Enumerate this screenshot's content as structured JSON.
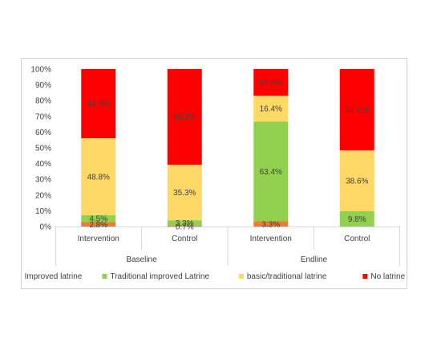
{
  "chart_data": {
    "type": "bar",
    "stacked": true,
    "groups": [
      {
        "label": "Baseline",
        "categories": [
          "Intervention",
          "Control"
        ]
      },
      {
        "label": "Endline",
        "categories": [
          "Intervention",
          "Control"
        ]
      }
    ],
    "ylim": [
      0,
      100
    ],
    "yticks": [
      "0%",
      "10%",
      "20%",
      "30%",
      "40%",
      "50%",
      "60%",
      "70%",
      "80%",
      "90%",
      "100%"
    ],
    "grid": false,
    "legend_position": "bottom",
    "series": [
      {
        "name": "Improved latrine",
        "color": "#ED7D31",
        "values": [
          2.8,
          0.7,
          3.3,
          0
        ],
        "labels": [
          "2.8%",
          "0.7%",
          "3.3%",
          ""
        ]
      },
      {
        "name": "Traditional improved Latrine",
        "color": "#92D050",
        "values": [
          4.5,
          3.3,
          63.4,
          9.8
        ],
        "labels": [
          "4.5%",
          "3.3%",
          "63.4%",
          "9.8%"
        ]
      },
      {
        "name": "basic/traditional latrine",
        "color": "#FFD966",
        "values": [
          48.8,
          35.3,
          16.4,
          38.6
        ],
        "labels": [
          "48.8%",
          "35.3%",
          "16.4%",
          "38.6%"
        ]
      },
      {
        "name": "No latrine",
        "color": "#FF0000",
        "values": [
          43.9,
          60.7,
          16.9,
          51.6
        ],
        "labels": [
          "43.9%",
          "60.7%",
          "16.9%",
          "51.6%"
        ]
      }
    ]
  }
}
